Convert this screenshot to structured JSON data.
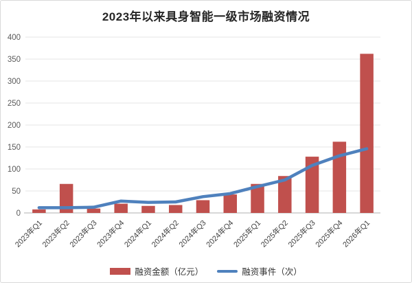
{
  "chart_data": {
    "type": "bar",
    "title": "2023年以来具身智能一级市场融资情况",
    "categories": [
      "2023年Q1",
      "2023年Q2",
      "2023年Q3",
      "2023年Q4",
      "2024年Q1",
      "2024年Q2",
      "2024年Q3",
      "2024年Q4",
      "2025年Q1",
      "2025年Q2",
      "2025年Q3",
      "2025年Q4",
      "2026年Q1"
    ],
    "series": [
      {
        "name": "融资金额（亿元）",
        "type": "bar",
        "color": "#C0504D",
        "values": [
          8,
          66,
          10,
          21,
          16,
          18,
          29,
          42,
          66,
          84,
          128,
          162,
          362
        ]
      },
      {
        "name": "融资事件（次）",
        "type": "line",
        "color": "#4F81BD",
        "values": [
          12,
          12,
          13,
          27,
          24,
          25,
          37,
          44,
          60,
          75,
          108,
          130,
          146
        ]
      }
    ],
    "ylim": [
      0,
      400
    ],
    "yticks": [
      0,
      50,
      100,
      150,
      200,
      250,
      300,
      350,
      400
    ],
    "grid": true,
    "legend_position": "bottom",
    "colors": {
      "gridline": "#e6e6e6",
      "axis_line": "#bfbfbf",
      "tick_label": "#595959",
      "title_text": "#262626"
    }
  }
}
